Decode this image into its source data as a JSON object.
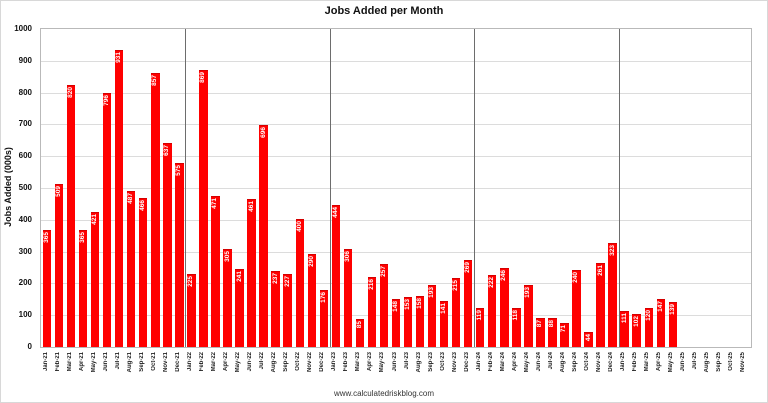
{
  "page": {
    "title": "Jobs Added per Month",
    "footer": "www.calculatedriskblog.com"
  },
  "chart_data": {
    "type": "bar",
    "title": "Jobs Added per Month",
    "xlabel": "",
    "ylabel": "Jobs Added (000s)",
    "ylim": [
      0,
      1000
    ],
    "ytick_step": 100,
    "grid": true,
    "legend": false,
    "bar_color": "#ff0000",
    "bar_label_color": "#ffffff",
    "source_text": "www.calculatedriskblog.com",
    "year_separators_after": [
      "Dec-21",
      "Dec-22",
      "Dec-23",
      "Dec-24"
    ],
    "categories": [
      "Jan-21",
      "Feb-21",
      "Mar-21",
      "Apr-21",
      "May-21",
      "Jun-21",
      "Jul-21",
      "Aug-21",
      "Sep-21",
      "Oct-21",
      "Nov-21",
      "Dec-21",
      "Jan-22",
      "Feb-22",
      "Mar-22",
      "Apr-22",
      "May-22",
      "Jun-22",
      "Jul-22",
      "Aug-22",
      "Sep-22",
      "Oct-22",
      "Nov-22",
      "Dec-22",
      "Jan-23",
      "Feb-23",
      "Mar-23",
      "Apr-23",
      "May-23",
      "Jun-23",
      "Jul-23",
      "Aug-23",
      "Sep-23",
      "Oct-23",
      "Nov-23",
      "Dec-23",
      "Jan-24",
      "Feb-24",
      "Mar-24",
      "Apr-24",
      "May-24",
      "Jun-24",
      "Jul-24",
      "Aug-24",
      "Sep-24",
      "Oct-24",
      "Nov-24",
      "Dec-24",
      "Jan-25",
      "Feb-25",
      "Mar-25",
      "Apr-25",
      "May-25",
      "Jun-25",
      "Jul-25",
      "Aug-25",
      "Sep-25",
      "Oct-25",
      "Nov-25"
    ],
    "values": [
      365,
      509,
      820,
      365,
      421,
      796,
      931,
      487,
      466,
      857,
      637,
      575,
      225,
      869,
      471,
      305,
      241,
      461,
      696,
      237,
      227,
      400,
      290,
      176,
      444,
      306,
      85,
      216,
      257,
      148,
      153,
      158,
      193,
      141,
      215,
      269,
      119,
      222,
      246,
      118,
      193,
      87,
      88,
      71,
      240,
      44,
      261,
      323,
      111,
      102,
      120,
      147,
      139,
      null,
      null,
      null,
      null,
      null,
      null
    ]
  }
}
